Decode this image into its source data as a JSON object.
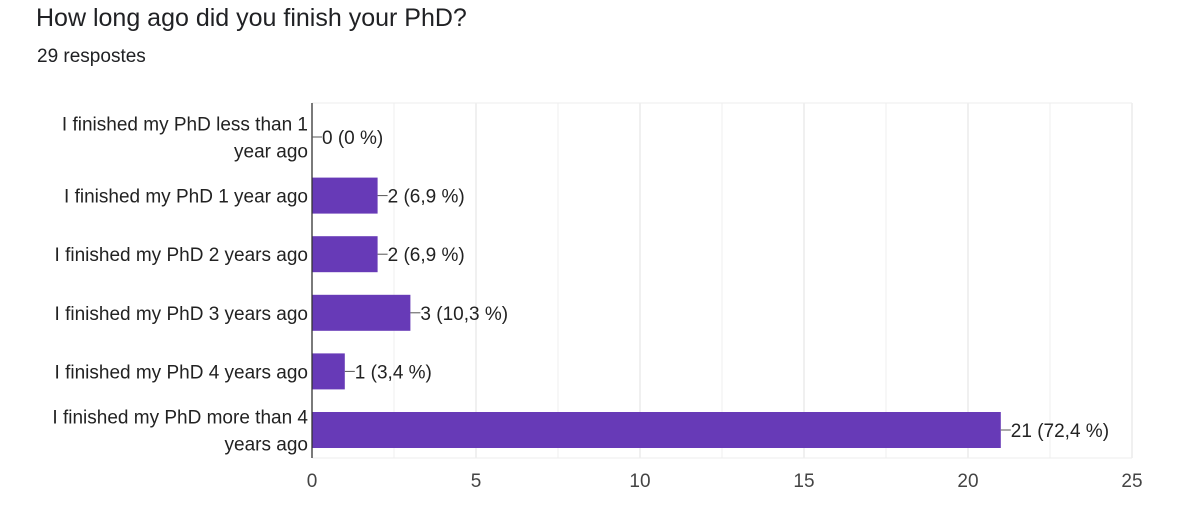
{
  "header": {
    "title": "How long ago did you finish your PhD?",
    "responses": "29 respostes"
  },
  "colors": {
    "bar": "#673ab7",
    "grid": "#e6e6e6",
    "axis": "#333333",
    "text": "#222222"
  },
  "chart_data": {
    "type": "bar",
    "orientation": "horizontal",
    "title": "How long ago did you finish your PhD?",
    "categories": [
      [
        "I finished my PhD less than 1",
        "year ago"
      ],
      [
        "I finished my PhD 1 year ago"
      ],
      [
        "I finished my PhD 2 years ago"
      ],
      [
        "I finished my PhD 3 years ago"
      ],
      [
        "I finished my PhD 4 years ago"
      ],
      [
        "I finished my PhD more than 4",
        "years ago"
      ]
    ],
    "values": [
      0,
      2,
      2,
      3,
      1,
      21
    ],
    "data_labels": [
      "0 (0 %)",
      "2 (6,9 %)",
      "2 (6,9 %)",
      "3 (10,3 %)",
      "1 (3,4 %)",
      "21 (72,4 %)"
    ],
    "xlim": [
      0,
      25
    ],
    "xticks": [
      0,
      5,
      10,
      15,
      20,
      25
    ],
    "grid": true,
    "legend": "none"
  }
}
